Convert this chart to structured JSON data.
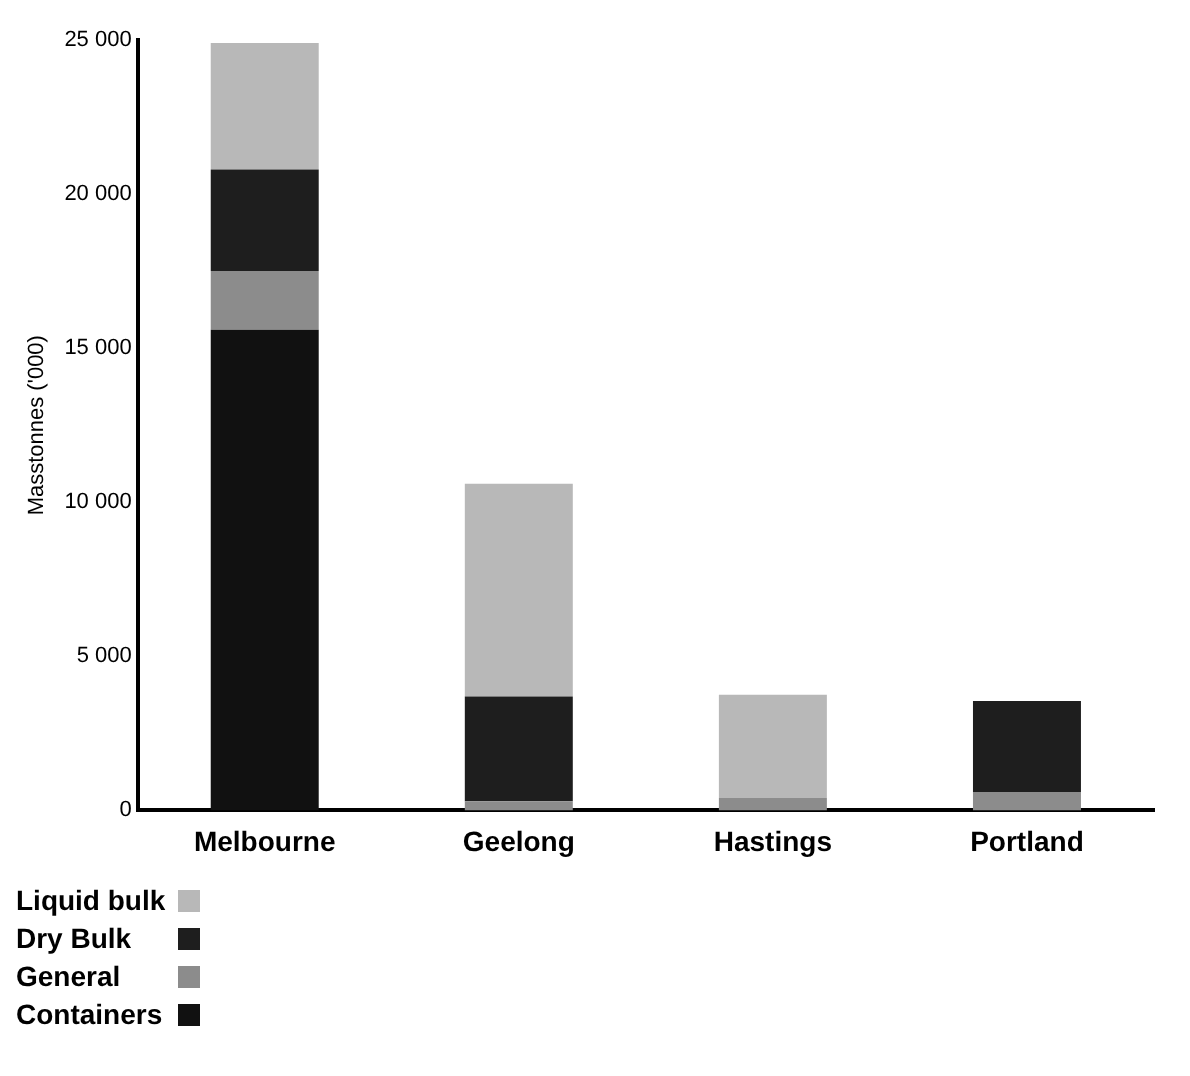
{
  "chart_data": {
    "type": "bar",
    "ylabel": "Masstonnes ('000)",
    "categories": [
      "Melbourne",
      "Geelong",
      "Hastings",
      "Portland"
    ],
    "stacked": true,
    "series": [
      {
        "name": "Containers",
        "color": "#111111",
        "values": [
          15600,
          0,
          0,
          0
        ]
      },
      {
        "name": "General",
        "color": "#8c8c8c",
        "values": [
          1900,
          300,
          400,
          600
        ]
      },
      {
        "name": "Dry Bulk",
        "color": "#1e1e1e",
        "values": [
          3300,
          3400,
          0,
          2950
        ]
      },
      {
        "name": "Liquid bulk",
        "color": "#b8b8b8",
        "values": [
          4100,
          6900,
          3350,
          0
        ]
      }
    ],
    "ylim": [
      0,
      25000
    ],
    "yticks": [
      {
        "value": 0,
        "label": "0"
      },
      {
        "value": 5000,
        "label": "5 000"
      },
      {
        "value": 10000,
        "label": "10 000"
      },
      {
        "value": 15000,
        "label": "15 000"
      },
      {
        "value": 20000,
        "label": "20 000"
      },
      {
        "value": 25000,
        "label": "25 000"
      }
    ],
    "grid": false,
    "legend": "bottom left"
  }
}
